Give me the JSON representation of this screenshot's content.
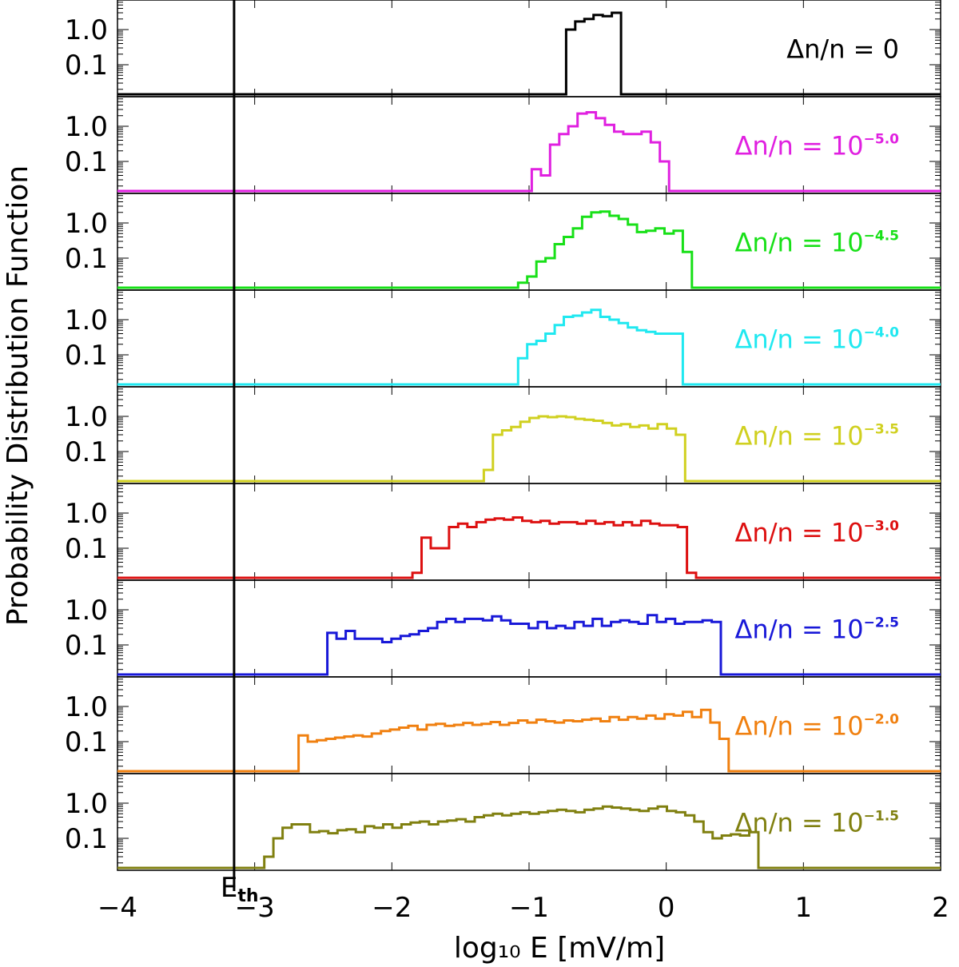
{
  "chart_data": {
    "type": "line",
    "subtype": "stacked step histograms (probability distribution function)",
    "xlabel": "log₁₀ E [mV/m]",
    "ylabel": "Probability Distribution Function",
    "xlim": [
      -4,
      2
    ],
    "x_ticks": [
      -4,
      -3,
      -2,
      -1,
      0,
      1,
      2
    ],
    "x_tick_labels": [
      "−4",
      "−3",
      "−2",
      "−1",
      "0",
      "1",
      "2"
    ],
    "y_scale": "log",
    "y_ticks": [
      1.0,
      0.1
    ],
    "y_tick_labels": [
      "1.0",
      "0.1"
    ],
    "threshold": {
      "label": "E",
      "subscript": "th",
      "x": -3.15
    },
    "bin_width": 0.0667,
    "series": [
      {
        "label_prefix": "Δn/n  =  0",
        "exponent": "",
        "color": "#000000",
        "start": -0.73,
        "values": [
          1.0,
          1.7,
          2.0,
          2.6,
          2.4,
          3.0
        ]
      },
      {
        "label_prefix": "Δn/n  =  10",
        "exponent": "−5.0",
        "color": "#e020e0",
        "start": -0.98,
        "values": [
          0.06,
          0.04,
          0.3,
          0.6,
          1.0,
          2.3,
          2.5,
          1.7,
          1.1,
          0.7,
          0.6,
          0.6,
          0.7,
          0.35,
          0.1
        ]
      },
      {
        "label_prefix": "Δn/n  =  10",
        "exponent": "−4.5",
        "color": "#18e018",
        "start": -1.08,
        "values": [
          0.02,
          0.03,
          0.08,
          0.1,
          0.25,
          0.4,
          0.7,
          1.5,
          2.0,
          2.1,
          1.6,
          1.3,
          0.9,
          0.55,
          0.6,
          0.7,
          0.5,
          0.6,
          0.15
        ]
      },
      {
        "label_prefix": "Δn/n  =  10",
        "exponent": "−4.0",
        "color": "#20e8f0",
        "start": -1.08,
        "values": [
          0.08,
          0.2,
          0.25,
          0.4,
          0.7,
          1.2,
          1.3,
          1.6,
          1.9,
          1.2,
          1.0,
          0.8,
          0.6,
          0.5,
          0.45,
          0.4,
          0.4,
          0.4
        ]
      },
      {
        "label_prefix": "Δn/n  =  10",
        "exponent": "−3.5",
        "color": "#d0d020",
        "start": -1.33,
        "values": [
          0.03,
          0.3,
          0.4,
          0.5,
          0.7,
          0.9,
          1.0,
          0.95,
          1.0,
          0.95,
          0.85,
          0.8,
          0.75,
          0.65,
          0.55,
          0.6,
          0.5,
          0.55,
          0.45,
          0.6,
          0.45,
          0.3
        ]
      },
      {
        "label_prefix": "Δn/n  =  10",
        "exponent": "−3.0",
        "color": "#dd1010",
        "start": -1.85,
        "values": [
          0.02,
          0.2,
          0.1,
          0.1,
          0.4,
          0.5,
          0.4,
          0.55,
          0.65,
          0.7,
          0.65,
          0.75,
          0.6,
          0.55,
          0.6,
          0.5,
          0.55,
          0.55,
          0.5,
          0.6,
          0.5,
          0.55,
          0.45,
          0.55,
          0.45,
          0.6,
          0.5,
          0.45,
          0.45,
          0.4,
          0.02
        ]
      },
      {
        "label_prefix": "Δn/n  =  10",
        "exponent": "−2.5",
        "color": "#1818d8",
        "start": -2.47,
        "values": [
          0.22,
          0.15,
          0.25,
          0.15,
          0.15,
          0.15,
          0.12,
          0.15,
          0.18,
          0.2,
          0.25,
          0.3,
          0.45,
          0.55,
          0.45,
          0.55,
          0.55,
          0.5,
          0.65,
          0.5,
          0.4,
          0.4,
          0.3,
          0.45,
          0.3,
          0.35,
          0.3,
          0.45,
          0.35,
          0.55,
          0.35,
          0.45,
          0.5,
          0.45,
          0.4,
          0.7,
          0.45,
          0.55,
          0.4,
          0.45,
          0.45,
          0.5,
          0.45
        ]
      },
      {
        "label_prefix": "Δn/n  =  10",
        "exponent": "−2.0",
        "color": "#f08010",
        "start": -2.68,
        "values": [
          0.15,
          0.1,
          0.11,
          0.12,
          0.13,
          0.14,
          0.15,
          0.14,
          0.17,
          0.2,
          0.22,
          0.25,
          0.28,
          0.22,
          0.3,
          0.32,
          0.28,
          0.3,
          0.34,
          0.3,
          0.32,
          0.36,
          0.3,
          0.34,
          0.4,
          0.35,
          0.42,
          0.38,
          0.35,
          0.4,
          0.38,
          0.42,
          0.45,
          0.38,
          0.5,
          0.42,
          0.5,
          0.45,
          0.55,
          0.45,
          0.6,
          0.55,
          0.7,
          0.5,
          0.8,
          0.35,
          0.12
        ]
      },
      {
        "label_prefix": "Δn/n  =  10",
        "exponent": "−1.5",
        "color": "#808010",
        "start": -2.93,
        "values": [
          0.03,
          0.1,
          0.2,
          0.25,
          0.25,
          0.15,
          0.16,
          0.14,
          0.17,
          0.18,
          0.15,
          0.22,
          0.2,
          0.25,
          0.2,
          0.25,
          0.28,
          0.3,
          0.25,
          0.3,
          0.32,
          0.35,
          0.3,
          0.4,
          0.45,
          0.5,
          0.45,
          0.5,
          0.55,
          0.5,
          0.55,
          0.6,
          0.65,
          0.6,
          0.55,
          0.65,
          0.7,
          0.8,
          0.75,
          0.7,
          0.65,
          0.6,
          0.7,
          0.8,
          0.6,
          0.55,
          0.45,
          0.3,
          0.15,
          0.1,
          0.12,
          0.13,
          0.12,
          0.15
        ]
      }
    ]
  }
}
